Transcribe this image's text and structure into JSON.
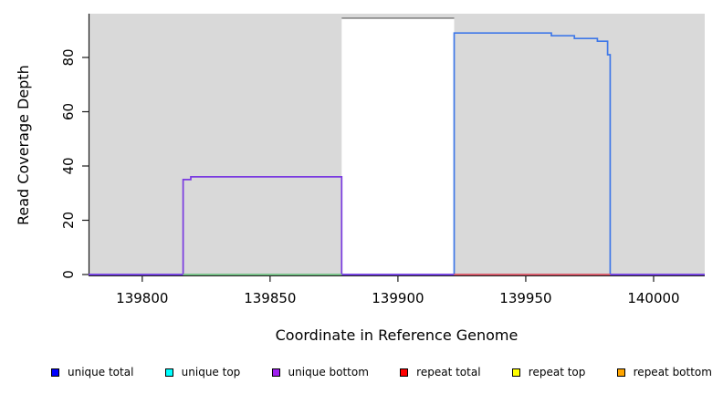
{
  "chart_data": {
    "type": "line",
    "title": "",
    "xlabel": "Coordinate in Reference Genome",
    "ylabel": "Read Coverage Depth",
    "xlim": [
      139779,
      140020
    ],
    "ylim": [
      0,
      96.1
    ],
    "xticks": [
      139800,
      139850,
      139900,
      139950,
      140000
    ],
    "yticks": [
      0,
      20,
      40,
      60,
      80
    ],
    "grid": false,
    "panel_bg": "#d9d9d9",
    "axis_color": "#1a1a1a",
    "gap_region": {
      "x1": 139878,
      "x2": 139922,
      "top": 94.5,
      "fill": "#ffffff",
      "border_color": "#8c8c8c"
    },
    "shaded_regions": [
      {
        "x1": 139779,
        "x2": 140020,
        "color": "#d9d9d9"
      }
    ],
    "series": [
      {
        "name": "unique total",
        "color": "#3f78e8",
        "points": [
          [
            139779,
            0
          ],
          [
            139922,
            0
          ],
          [
            139922,
            89
          ],
          [
            139960,
            89
          ],
          [
            139960,
            88
          ],
          [
            139969,
            88
          ],
          [
            139969,
            87
          ],
          [
            139978,
            87
          ],
          [
            139978,
            86
          ],
          [
            139982,
            86
          ],
          [
            139982,
            81
          ],
          [
            139983,
            81
          ],
          [
            139983,
            0
          ],
          [
            140020,
            0
          ]
        ]
      },
      {
        "name": "unique bottom",
        "color": "#7a3be0",
        "points": [
          [
            139779,
            0
          ],
          [
            139816,
            0
          ],
          [
            139816,
            35
          ],
          [
            139819,
            35
          ],
          [
            139819,
            36
          ],
          [
            139878,
            36
          ],
          [
            139878,
            0
          ],
          [
            140020,
            0
          ]
        ]
      },
      {
        "name": "baseline segment green",
        "color": "#7cc87c",
        "points": [
          [
            139816,
            0
          ],
          [
            139878,
            0
          ]
        ]
      },
      {
        "name": "repeat total",
        "color": "#e05c5c",
        "points": [
          [
            139922,
            0
          ],
          [
            139983,
            0
          ]
        ]
      }
    ],
    "legend": {
      "position": "bottom",
      "swatch_border": "#000000",
      "items": [
        {
          "label": "unique total",
          "color": "#0000ff"
        },
        {
          "label": "unique top",
          "color": "#00ffff"
        },
        {
          "label": "unique bottom",
          "color": "#a020f0"
        },
        {
          "label": "repeat total",
          "color": "#ff0000"
        },
        {
          "label": "repeat top",
          "color": "#ffff00"
        },
        {
          "label": "repeat bottom",
          "color": "#ffa500"
        }
      ]
    }
  }
}
